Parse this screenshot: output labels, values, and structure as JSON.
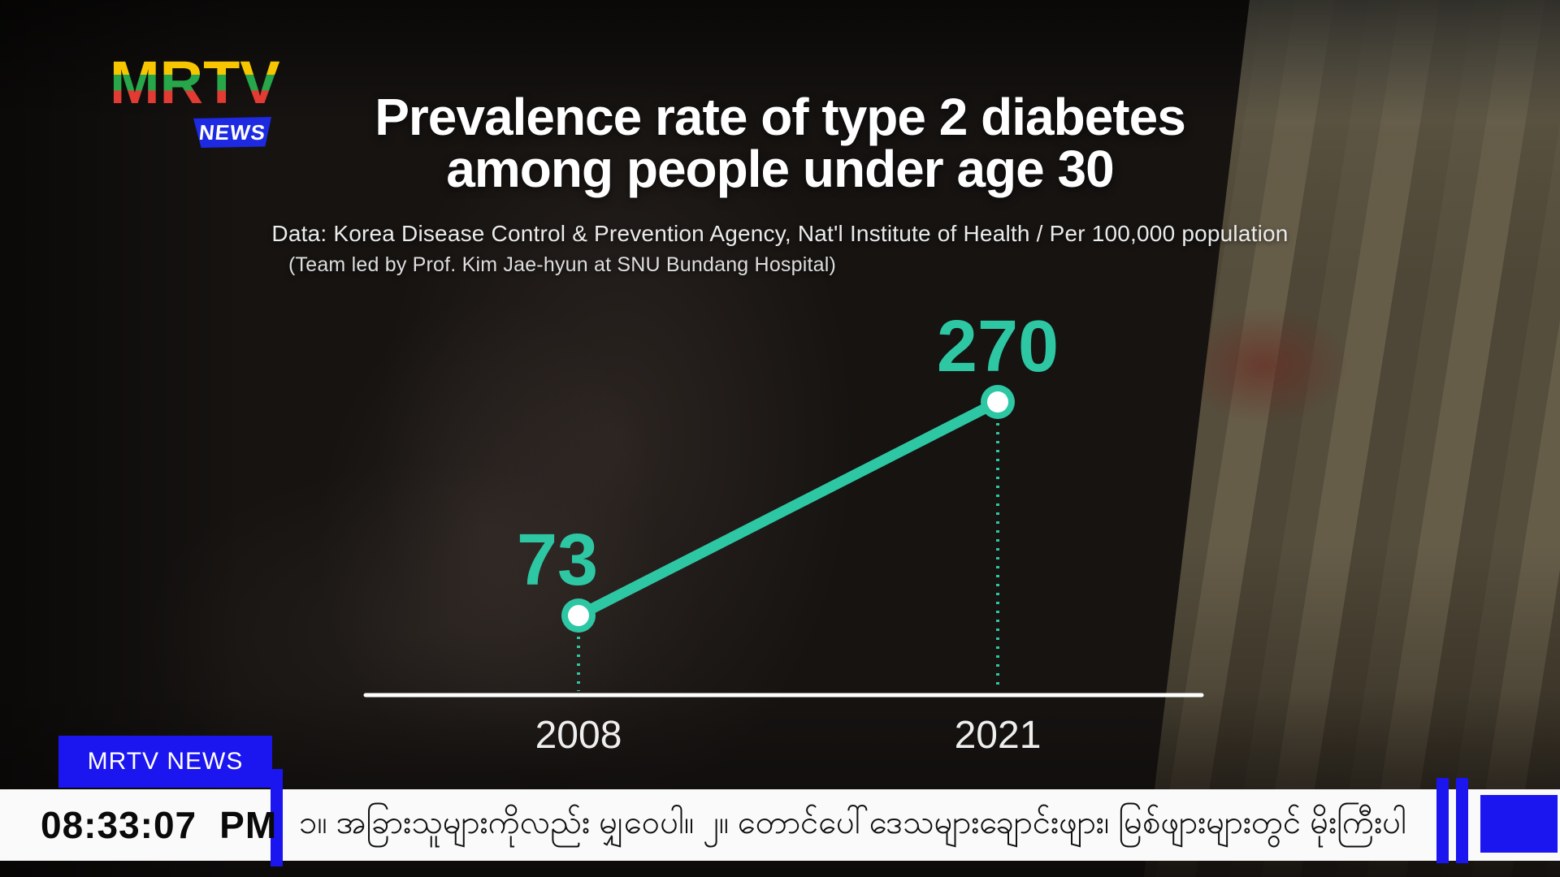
{
  "branding": {
    "logo_text": "MRTV",
    "logo_badge": "NEWS",
    "logo_colors": {
      "yellow": "#f7c600",
      "green": "#27a64a",
      "red": "#e23b33",
      "badge_blue": "#1d2ae2"
    }
  },
  "header": {
    "title_line1": "Prevalence rate of type 2 diabetes",
    "title_line2": "among people under age 30",
    "source_line": "Data: Korea Disease Control & Prevention Agency, Nat'l Institute of Health / Per 100,000 population",
    "team_line": "(Team led by Prof. Kim Jae-hyun at SNU Bundang Hospital)"
  },
  "chart_data": {
    "type": "line",
    "title": "Prevalence rate of type 2 diabetes among people under age 30",
    "categories": [
      "2008",
      "2021"
    ],
    "values": [
      73,
      270
    ],
    "point_labels": [
      "73",
      "270"
    ],
    "ylabel": "Per 100,000 population",
    "ylim": [
      0,
      300
    ],
    "grid": false,
    "accent_color": "#2ec7a3",
    "axis_color": "#ffffff",
    "point_fill": "#ffffff",
    "year_label_color": "#eeeeee"
  },
  "footer": {
    "channel_badge": "MRTV NEWS",
    "clock_time": "08:33:07",
    "clock_meridiem": "PM",
    "ticker_text": "၁။ အခြားသူများကိုလည်း မျှဝေပါ။  ၂။ တောင်ပေါ်ဒေသများချောင်းဖျား၊ မြစ်ဖျားများတွင် မိုးကြီးပါ",
    "accent_blue": "#1b15f0"
  }
}
